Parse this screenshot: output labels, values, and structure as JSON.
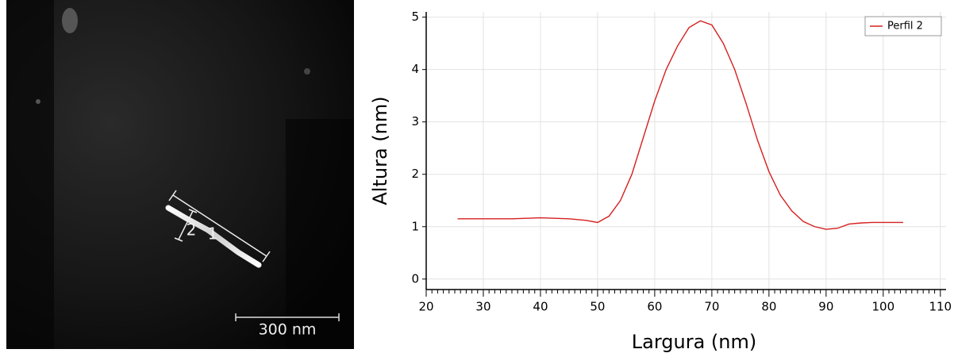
{
  "image": {
    "profile_labels": [
      "1",
      "2"
    ],
    "scale_bar": "300 nm"
  },
  "chart_data": {
    "type": "line",
    "x_label": "Largura (nm)",
    "y_label": "Altura (nm)",
    "x": [
      25.5,
      30,
      35,
      40,
      45,
      48,
      50,
      52,
      54,
      56,
      58,
      60,
      62,
      64,
      66,
      68,
      70,
      72,
      74,
      76,
      78,
      80,
      82,
      84,
      86,
      88,
      90,
      92,
      94,
      96,
      98,
      100,
      103.5
    ],
    "series": [
      {
        "name": "Perfil 2",
        "color": "#d62020",
        "values": [
          1.15,
          1.15,
          1.15,
          1.17,
          1.15,
          1.12,
          1.08,
          1.2,
          1.5,
          2.0,
          2.7,
          3.4,
          4.0,
          4.45,
          4.8,
          4.93,
          4.85,
          4.5,
          4.0,
          3.35,
          2.65,
          2.05,
          1.6,
          1.3,
          1.1,
          1.0,
          0.95,
          0.97,
          1.05,
          1.07,
          1.08,
          1.08,
          1.08
        ]
      }
    ],
    "xlim": [
      20,
      111
    ],
    "ylim": [
      -0.2,
      5.1
    ],
    "xticks": [
      20,
      30,
      40,
      50,
      60,
      70,
      80,
      90,
      100,
      110
    ],
    "yticks": [
      0,
      1,
      2,
      3,
      4,
      5
    ],
    "grid": true,
    "legend": "upper right"
  }
}
